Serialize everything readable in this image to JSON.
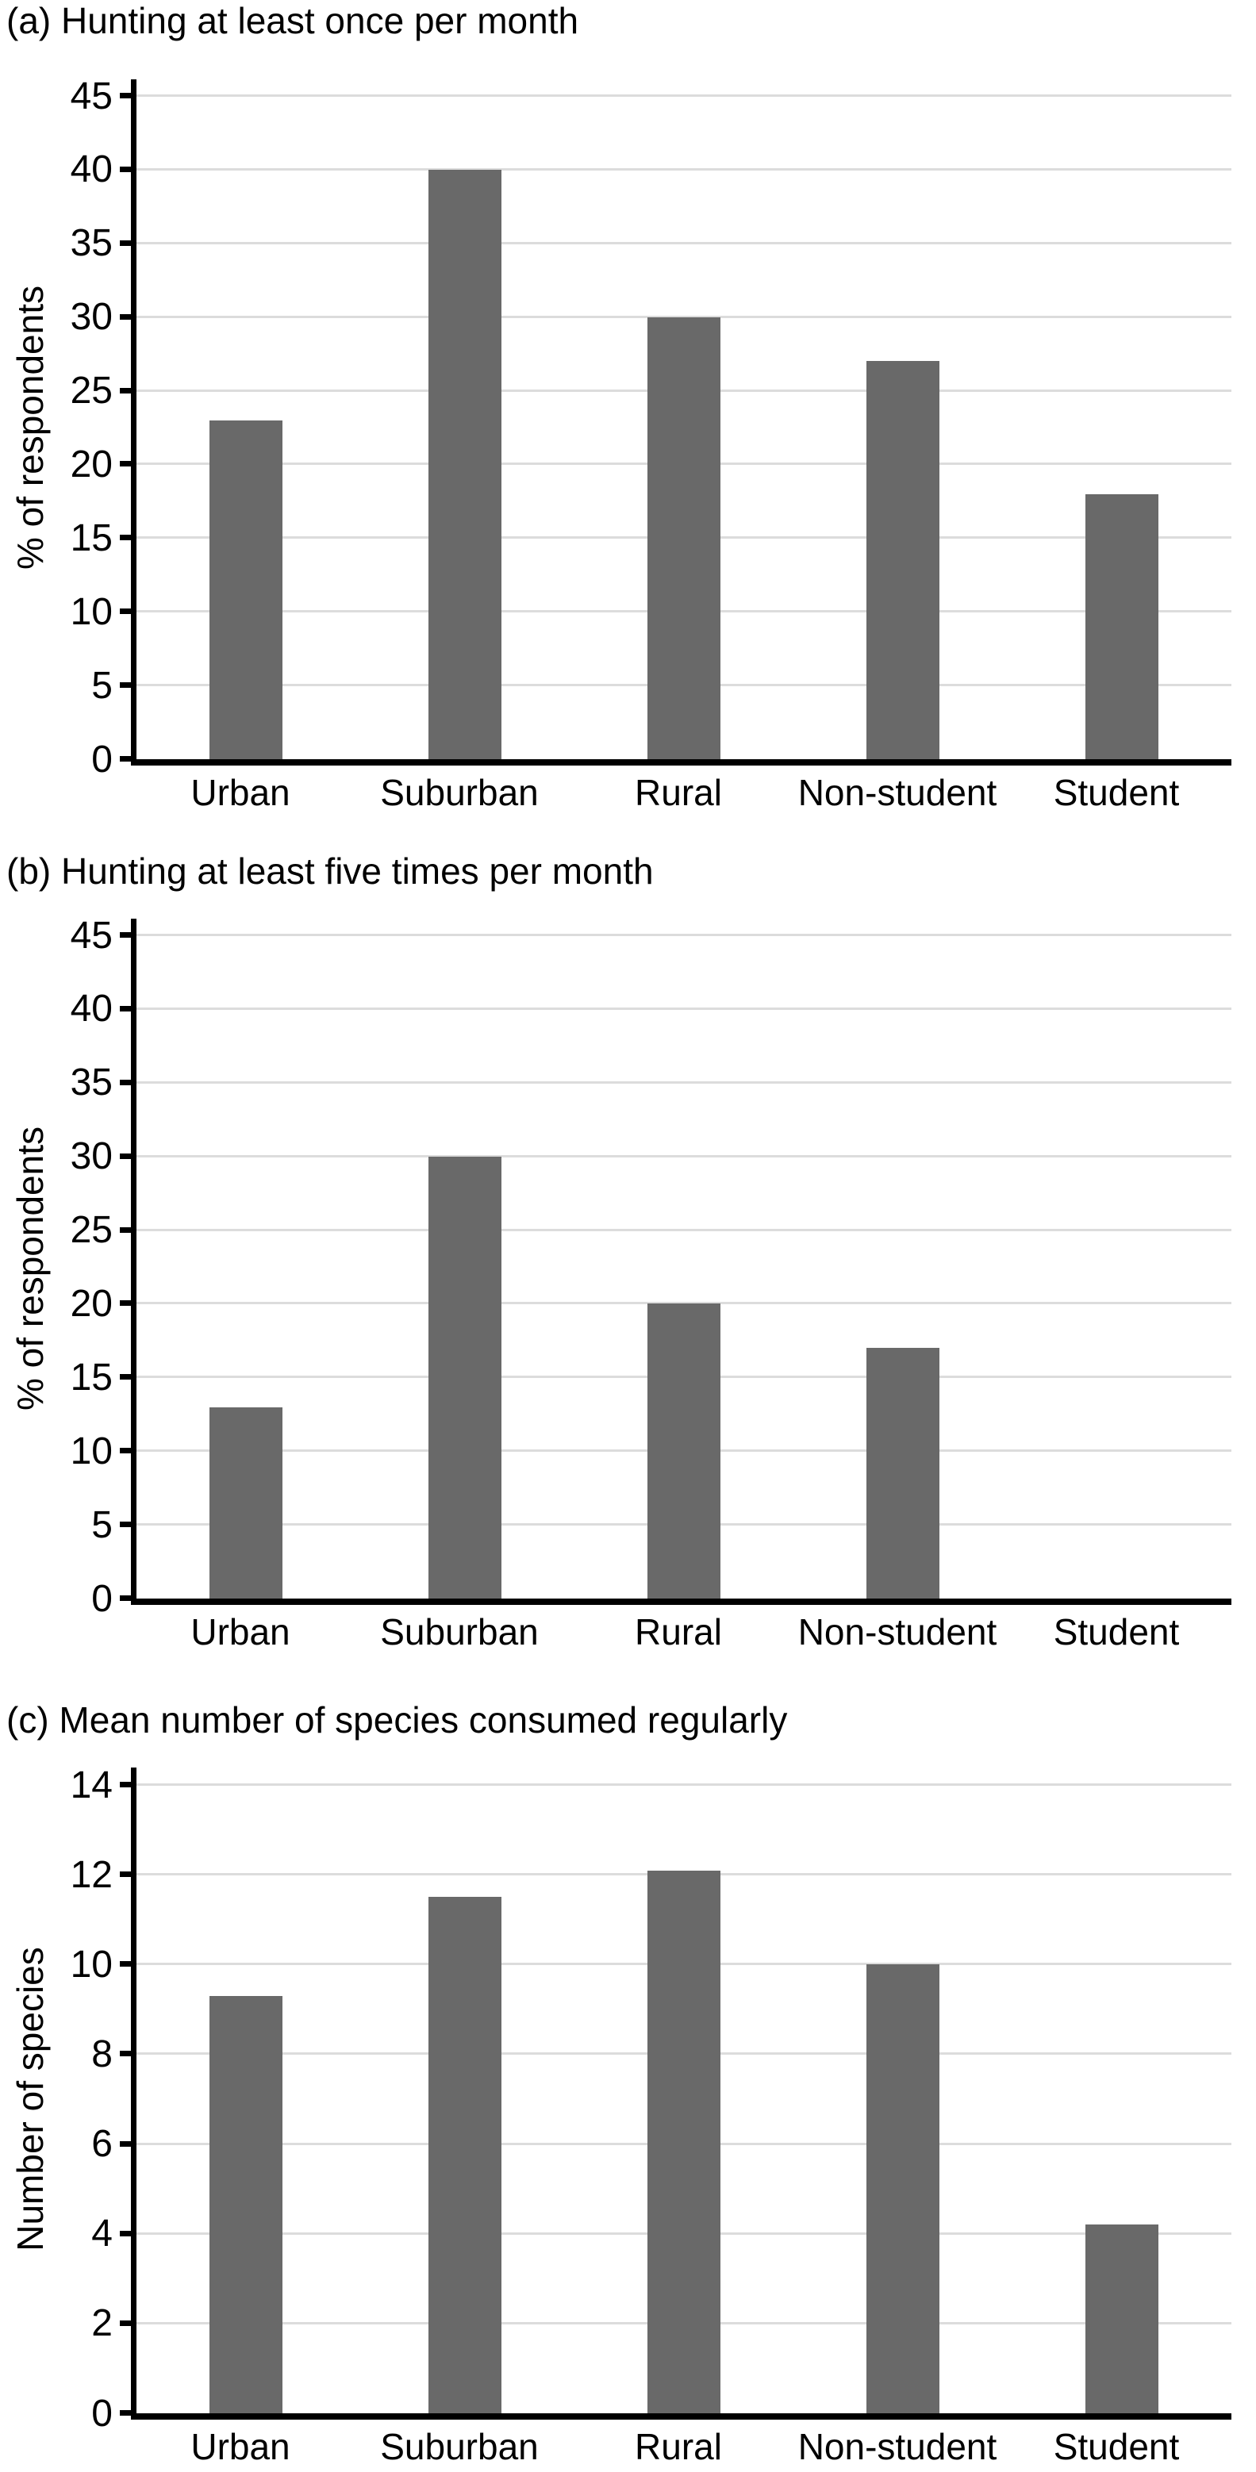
{
  "figure": {
    "background": "#ffffff"
  },
  "style": {
    "bar_color": "#696969",
    "grid_color": "#dcdcdc",
    "axis_color": "#000000",
    "text_color": "#000000"
  },
  "chart_data": [
    {
      "type": "bar",
      "title": "(a) Hunting at least once per month",
      "categories": [
        "Urban",
        "Suburban",
        "Rural",
        "Non-student",
        "Student"
      ],
      "values": [
        23,
        40,
        30,
        27,
        18
      ],
      "xlabel": "",
      "ylabel": "% of respondents",
      "ylim": [
        0,
        45
      ],
      "ytick_step": 5,
      "grid": true,
      "legend": false
    },
    {
      "type": "bar",
      "title": "(b) Hunting at least five times per month",
      "categories": [
        "Urban",
        "Suburban",
        "Rural",
        "Non-student",
        "Student"
      ],
      "values": [
        13,
        30,
        20,
        17,
        0
      ],
      "xlabel": "",
      "ylabel": "% of respondents",
      "ylim": [
        0,
        45
      ],
      "ytick_step": 5,
      "grid": true,
      "legend": false
    },
    {
      "type": "bar",
      "title": "(c) Mean number of species consumed regularly",
      "categories": [
        "Urban",
        "Suburban",
        "Rural",
        "Non-student",
        "Student"
      ],
      "values": [
        9.3,
        11.5,
        12.1,
        10,
        4.2
      ],
      "xlabel": "",
      "ylabel": "Number of species",
      "ylim": [
        0,
        14
      ],
      "ytick_step": 2,
      "grid": true,
      "legend": false
    }
  ]
}
